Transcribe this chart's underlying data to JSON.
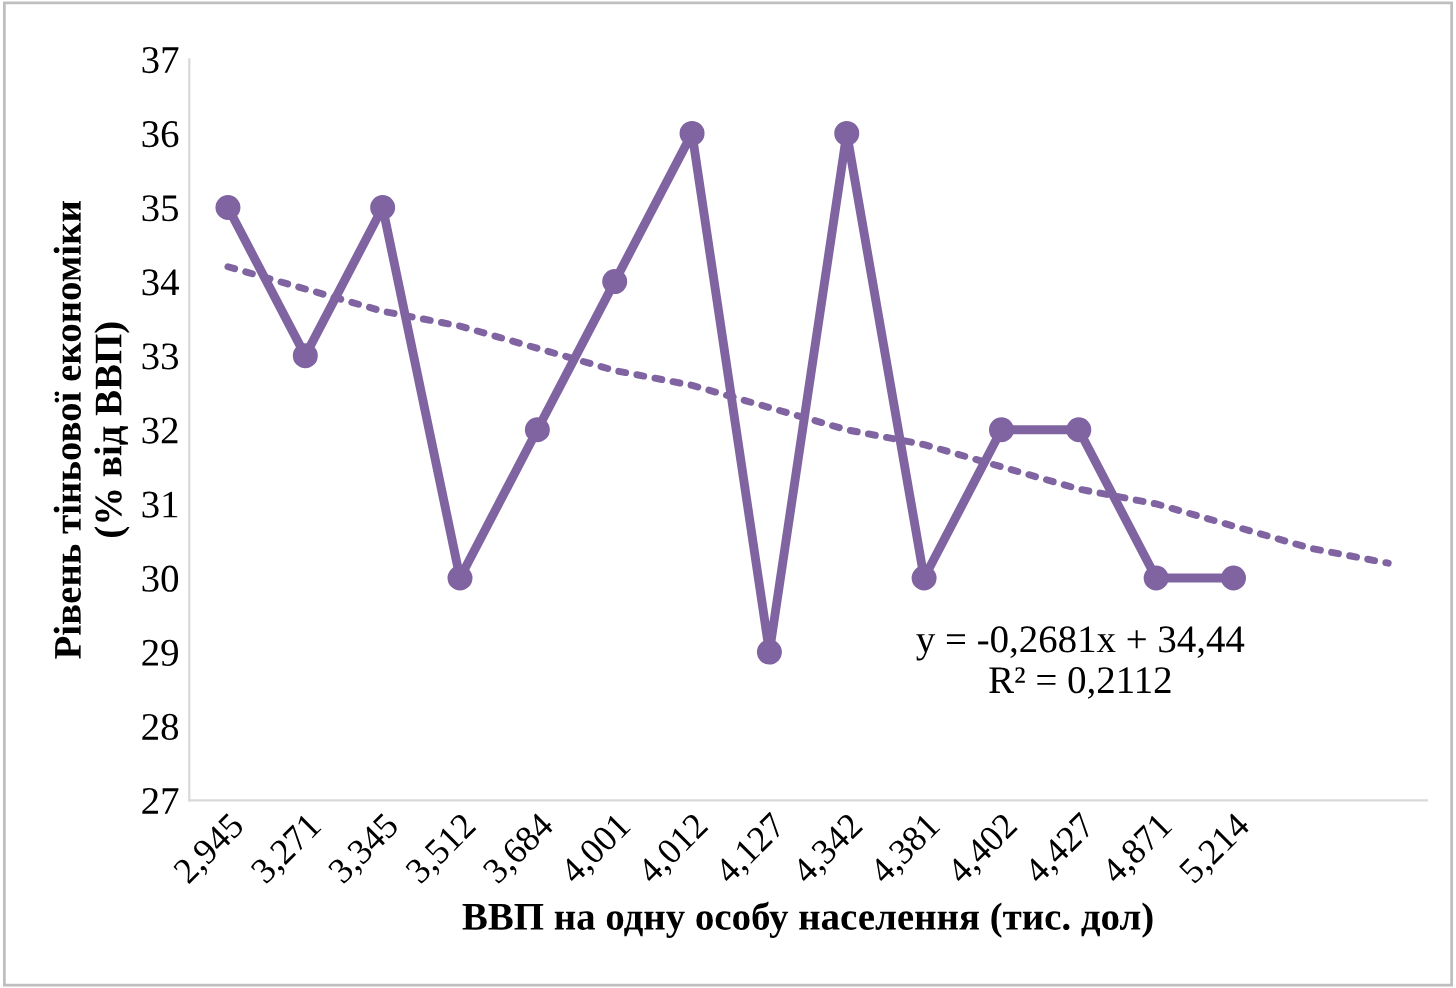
{
  "chart_data": {
    "type": "line",
    "xlabel": "ВВП на одну особу населення (тис. дол)",
    "ylabel": "Рівень тіньової економіки\n(% від ВВП)",
    "categories": [
      "2,945",
      "3,271",
      "3,345",
      "3,512",
      "3,684",
      "4,001",
      "4,012",
      "4,127",
      "4,342",
      "4,381",
      "4,402",
      "4,427",
      "4,871",
      "5,214",
      null,
      null
    ],
    "series": [
      {
        "color": "#8064a2",
        "marker": "circle",
        "line_style": "solid",
        "values": [
          35,
          33,
          35,
          30,
          32,
          34,
          36,
          29,
          36,
          30,
          32,
          32,
          30,
          30,
          null,
          null
        ]
      },
      {
        "color": "#8064a2",
        "marker": "none",
        "line_style": "dotted",
        "values": [
          34.2,
          33.9,
          33.6,
          33.4,
          33.1,
          32.8,
          32.6,
          32.3,
          32.0,
          31.8,
          31.5,
          31.2,
          31.0,
          30.7,
          30.4,
          30.2
        ]
      }
    ],
    "annotations": [
      "y = -0,2681x + 34,44\nR² = 0,2112"
    ],
    "ylim": [
      27,
      37
    ],
    "yticks": [
      27,
      28,
      29,
      30,
      31,
      32,
      33,
      34,
      35,
      36,
      37
    ],
    "grid": false,
    "legend": false
  }
}
